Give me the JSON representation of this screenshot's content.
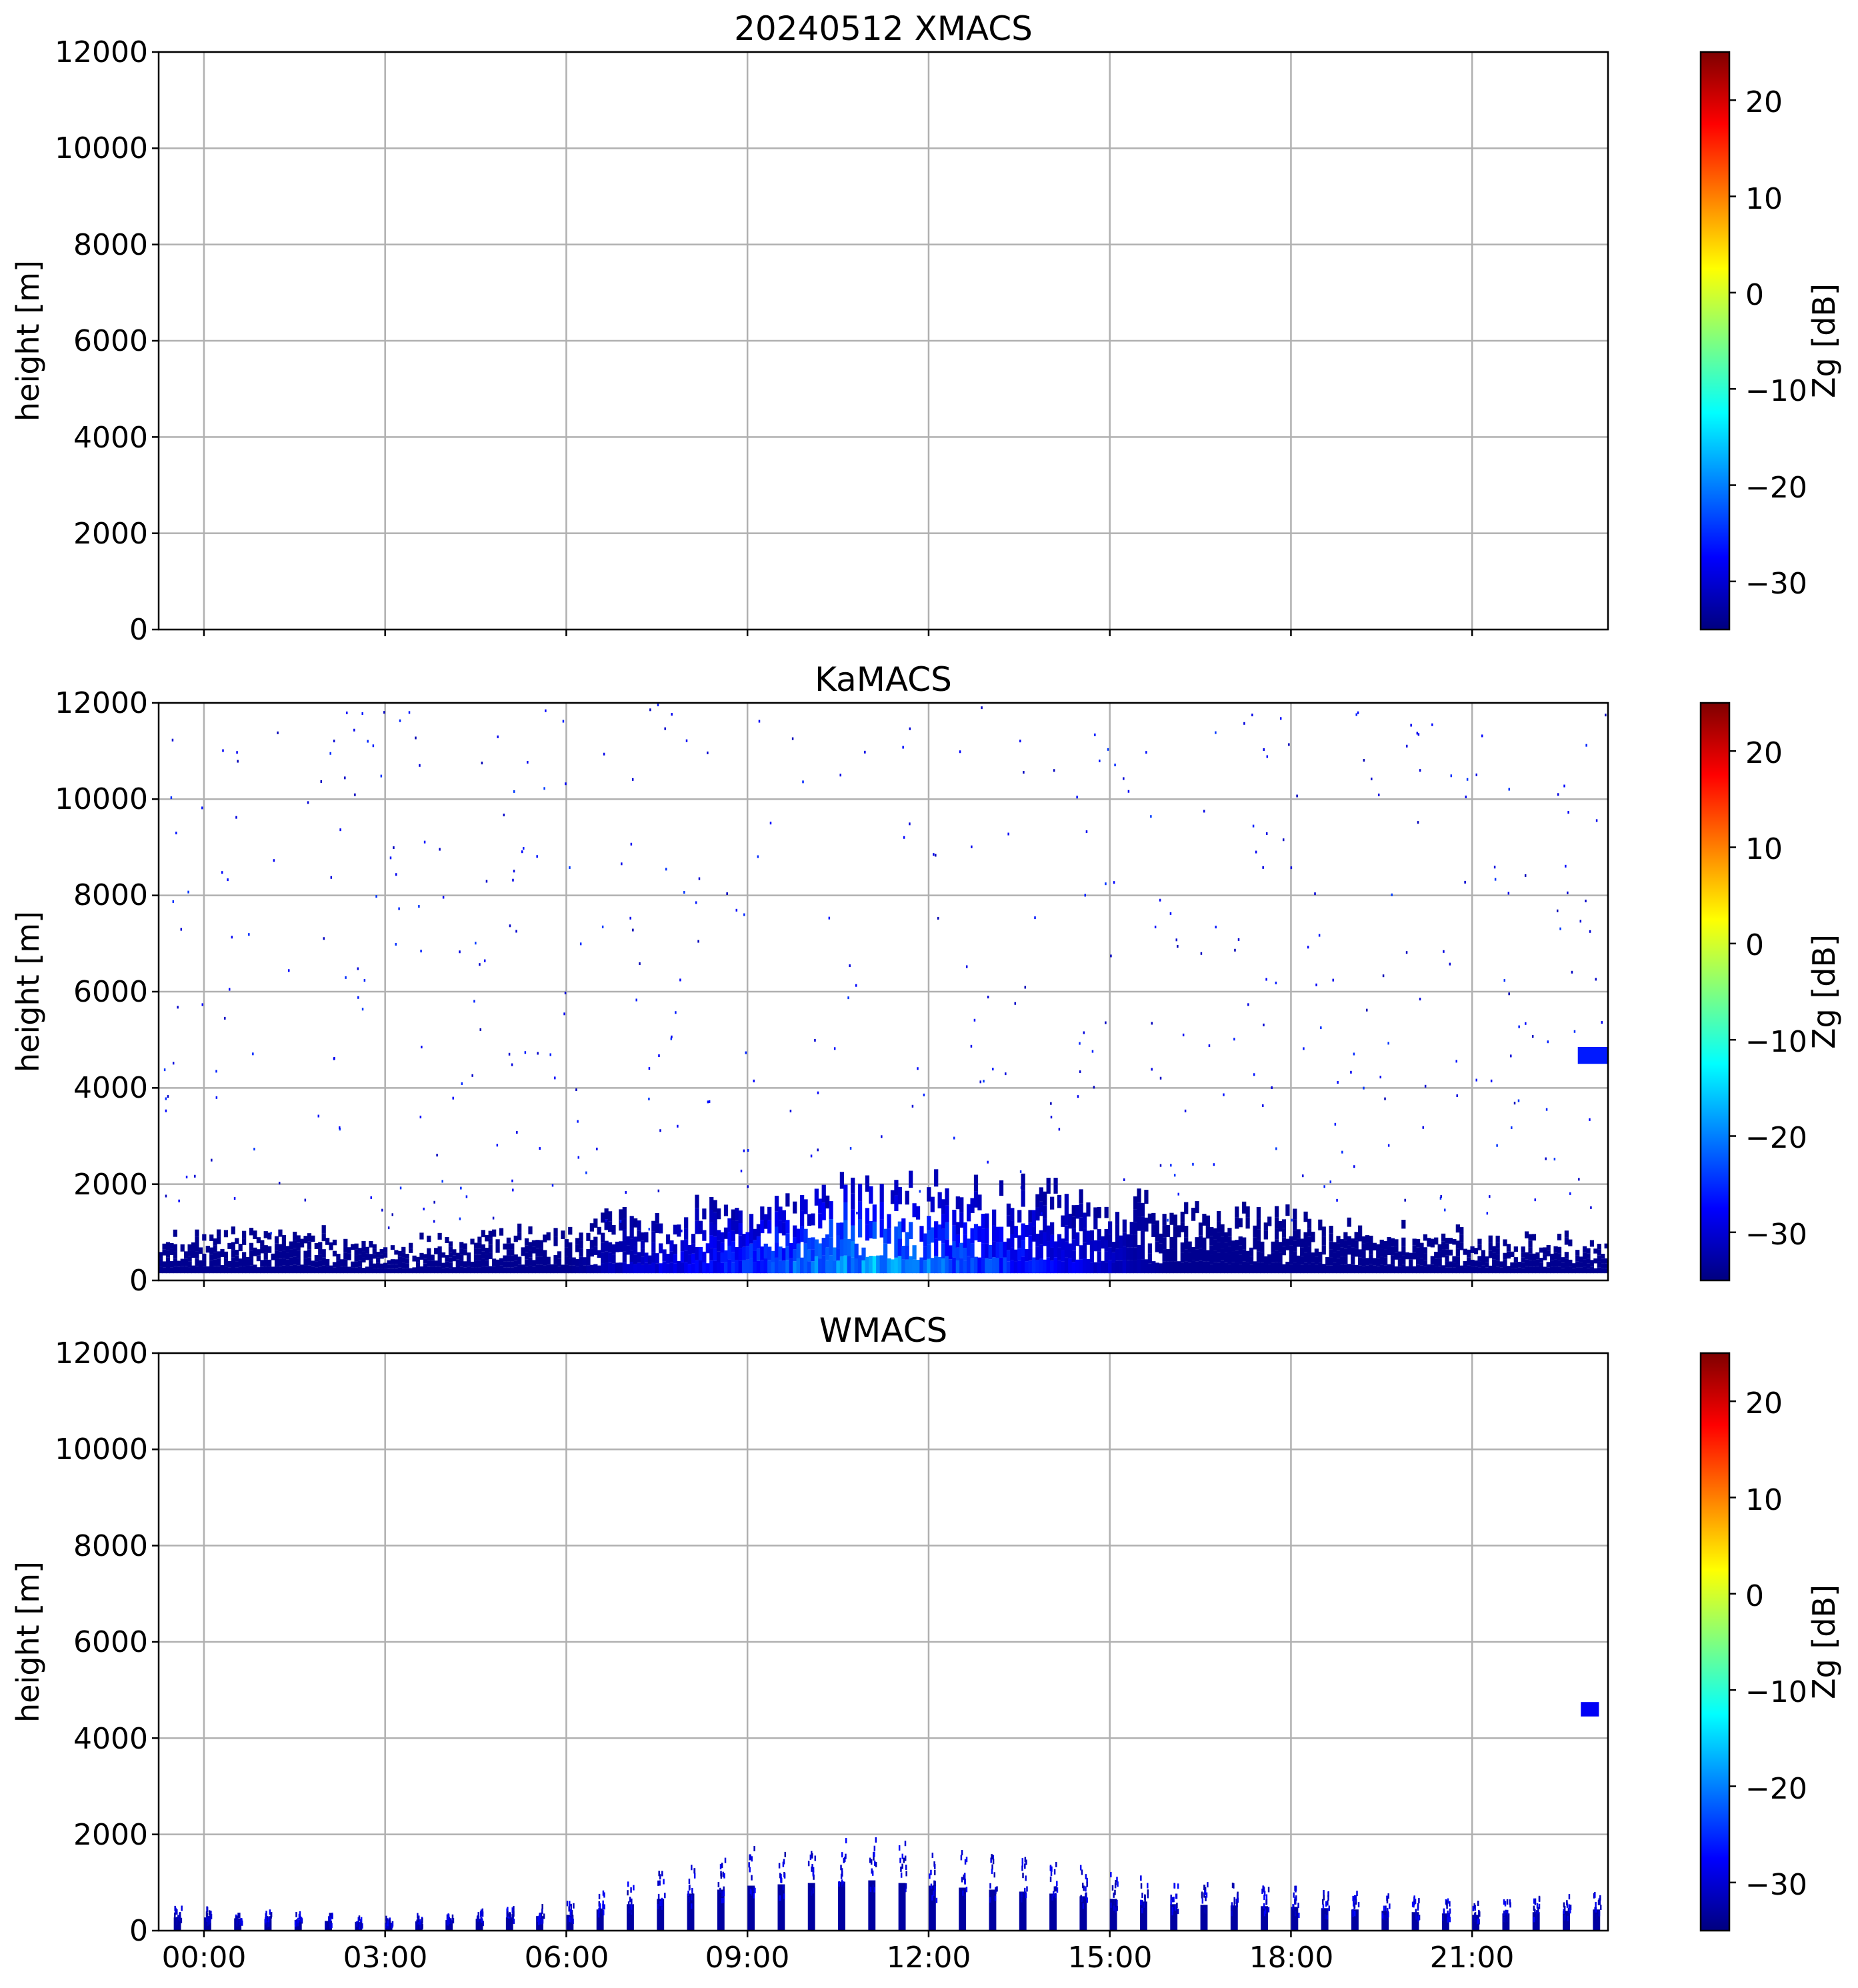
{
  "colors": {
    "grid": "#b0b0b0",
    "axis": "#000000",
    "colormap": [
      "#00007f",
      "#0000ff",
      "#007fff",
      "#00ffff",
      "#7fff7f",
      "#ffff00",
      "#ff7f00",
      "#ff0000",
      "#7f0000"
    ]
  },
  "chart_data": [
    {
      "type": "heatmap",
      "title": "20240512 XMACS",
      "xlabel": "",
      "ylabel": "height [m]",
      "xlim": [
        -0.75,
        23.25
      ],
      "ylim": [
        0,
        12000
      ],
      "xticks": [
        0,
        3,
        6,
        9,
        12,
        15,
        18,
        21
      ],
      "xtick_labels": [],
      "yticks": [
        0,
        2000,
        4000,
        6000,
        8000,
        10000,
        12000
      ],
      "ytick_labels": [
        "0",
        "2000",
        "4000",
        "6000",
        "8000",
        "10000",
        "12000"
      ],
      "grid": true,
      "colorbar": {
        "label": "Zg [dB]",
        "range": [
          -35,
          25
        ],
        "ticks": [
          -30,
          -20,
          -10,
          0,
          10,
          20
        ],
        "tick_labels": [
          "−30",
          "−20",
          "−10",
          "0",
          "10",
          "20"
        ],
        "colormap": "jet"
      },
      "features": []
    },
    {
      "type": "heatmap",
      "title": "KaMACS",
      "xlabel": "",
      "ylabel": "height [m]",
      "xlim": [
        -0.75,
        23.25
      ],
      "ylim": [
        0,
        12000
      ],
      "xticks": [
        0,
        3,
        6,
        9,
        12,
        15,
        18,
        21
      ],
      "xtick_labels": [],
      "yticks": [
        0,
        2000,
        4000,
        6000,
        8000,
        10000,
        12000
      ],
      "ytick_labels": [
        "0",
        "2000",
        "4000",
        "6000",
        "8000",
        "10000",
        "12000"
      ],
      "grid": true,
      "colorbar": {
        "label": "Zg [dB]",
        "range": [
          -35,
          25
        ],
        "ticks": [
          -30,
          -20,
          -10,
          0,
          10,
          20
        ],
        "tick_labels": [
          "−30",
          "−20",
          "−10",
          "0",
          "10",
          "20"
        ],
        "colormap": "jet"
      },
      "features": [
        {
          "kind": "boundary_layer_echo",
          "hours": [
            -0.75,
            23.25
          ],
          "top_height_profile_m": [
            [
              -0.75,
              900
            ],
            [
              1.5,
              1000
            ],
            [
              3,
              700
            ],
            [
              6,
              1100
            ],
            [
              9,
              1700
            ],
            [
              10.5,
              2100
            ],
            [
              12,
              2100
            ],
            [
              13.5,
              1900
            ],
            [
              15,
              1700
            ],
            [
              18,
              1300
            ],
            [
              21,
              900
            ],
            [
              23.25,
              800
            ]
          ],
          "zg_range_db": [
            -34,
            -14
          ]
        },
        {
          "kind": "elevated_cloud",
          "hours": [
            22.75,
            23.25
          ],
          "height_m": [
            4500,
            4850
          ],
          "zg_db": -26
        },
        {
          "kind": "sparse_noise",
          "height_m": [
            1000,
            12000
          ],
          "zg_db": -32
        }
      ]
    },
    {
      "type": "heatmap",
      "title": "WMACS",
      "xlabel": "",
      "ylabel": "height [m]",
      "xlim": [
        -0.75,
        23.25
      ],
      "ylim": [
        0,
        12000
      ],
      "xticks": [
        0,
        3,
        6,
        9,
        12,
        15,
        18,
        21
      ],
      "xtick_labels": [
        "00:00",
        "03:00",
        "06:00",
        "09:00",
        "12:00",
        "15:00",
        "18:00",
        "21:00"
      ],
      "yticks": [
        0,
        2000,
        4000,
        6000,
        8000,
        10000,
        12000
      ],
      "ytick_labels": [
        "0",
        "2000",
        "4000",
        "6000",
        "8000",
        "10000",
        "12000"
      ],
      "grid": true,
      "colorbar": {
        "label": "Zg [dB]",
        "range": [
          -35,
          25
        ],
        "ticks": [
          -30,
          -20,
          -10,
          0,
          10,
          20
        ],
        "tick_labels": [
          "−30",
          "−20",
          "−10",
          "0",
          "10",
          "20"
        ],
        "colormap": "jet"
      },
      "features": [
        {
          "kind": "periodic_vertical_streaks",
          "hours": [
            -0.75,
            23.25
          ],
          "interval_hours": 0.5,
          "max_height_profile_m": [
            [
              0,
              500
            ],
            [
              3,
              300
            ],
            [
              6,
              600
            ],
            [
              8,
              1400
            ],
            [
              9,
              1700
            ],
            [
              11,
              1900
            ],
            [
              12,
              1700
            ],
            [
              14,
              1400
            ],
            [
              16,
              1000
            ],
            [
              18,
              900
            ],
            [
              21,
              600
            ],
            [
              23,
              800
            ]
          ],
          "zg_db": -33
        },
        {
          "kind": "elevated_cloud",
          "hours": [
            22.8,
            23.1
          ],
          "height_m": [
            4450,
            4750
          ],
          "zg_db": -28
        }
      ]
    }
  ]
}
